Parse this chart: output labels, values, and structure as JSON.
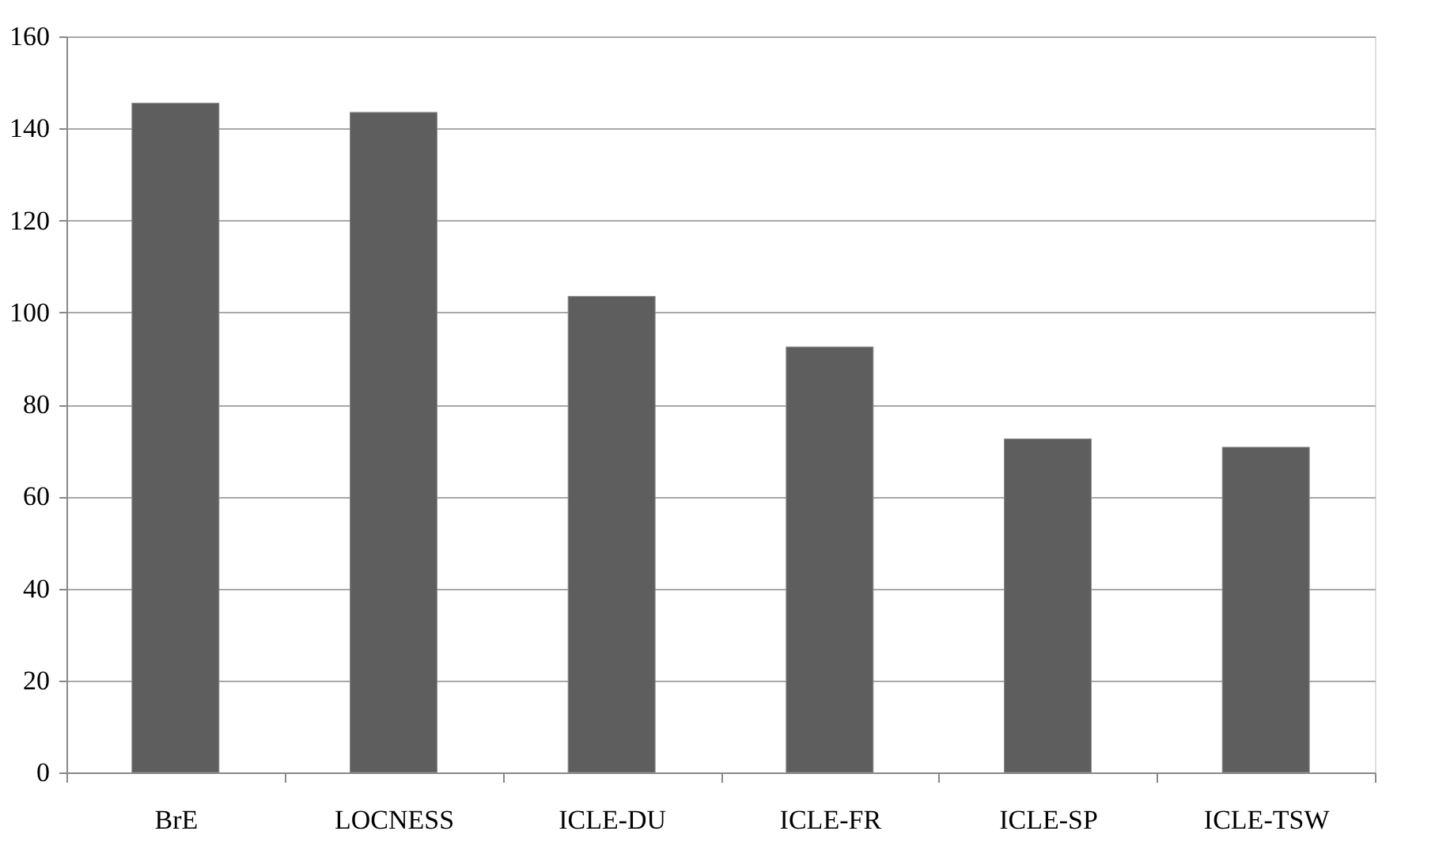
{
  "chart_data": {
    "type": "bar",
    "categories": [
      "BrE",
      "LOCNESS",
      "ICLE-DU",
      "ICLE-FR",
      "ICLE-SP",
      "ICLE-TSW"
    ],
    "values": [
      145.5,
      143.5,
      103.5,
      92.5,
      72.5,
      70.7
    ],
    "color": "#5e5e5e",
    "ylim": [
      0,
      160
    ],
    "yticks": [
      0,
      20,
      40,
      60,
      80,
      100,
      120,
      140,
      160
    ],
    "grid": "y"
  }
}
